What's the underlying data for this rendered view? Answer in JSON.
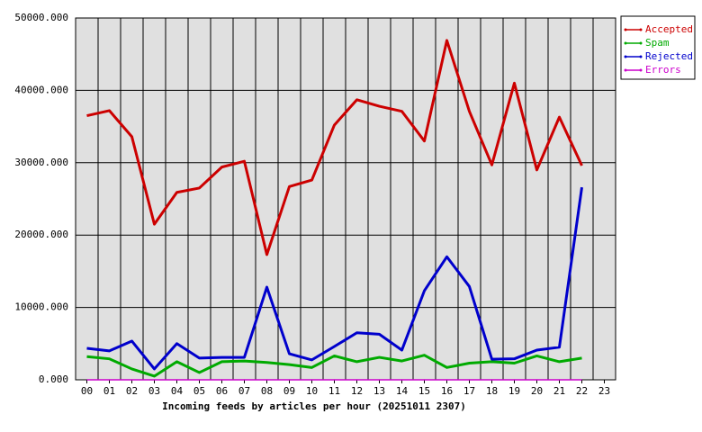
{
  "chart_data": {
    "type": "line",
    "xlabel": "Incoming feeds by articles per hour (20251011 2307)",
    "categories": [
      "00",
      "01",
      "02",
      "03",
      "04",
      "05",
      "06",
      "07",
      "08",
      "09",
      "10",
      "11",
      "12",
      "13",
      "14",
      "15",
      "16",
      "17",
      "18",
      "19",
      "20",
      "21",
      "22",
      "23"
    ],
    "series": [
      {
        "name": "Accepted",
        "color": "#cc0000",
        "values": [
          36500,
          37200,
          33600,
          21500,
          25900,
          26500,
          29400,
          30200,
          17300,
          26700,
          27600,
          35200,
          38700,
          37800,
          37100,
          33000,
          46900,
          37100,
          29700,
          41000,
          29000,
          36300,
          29600,
          null
        ]
      },
      {
        "name": "Spam",
        "color": "#00aa00",
        "values": [
          3200,
          2900,
          1500,
          500,
          2500,
          1000,
          2500,
          2600,
          2400,
          2100,
          1700,
          3300,
          2500,
          3100,
          2600,
          3400,
          1700,
          2300,
          2500,
          2300,
          3300,
          2500,
          3000,
          null
        ]
      },
      {
        "name": "Rejected",
        "color": "#0000cc",
        "values": [
          4350,
          4000,
          5350,
          1500,
          5000,
          3000,
          3100,
          3100,
          12800,
          3600,
          2750,
          4600,
          6500,
          6300,
          4100,
          12300,
          17000,
          12900,
          2850,
          2900,
          4100,
          4500,
          26600,
          null
        ]
      },
      {
        "name": "Errors",
        "color": "#cc00cc",
        "values": [
          0,
          0,
          0,
          0,
          0,
          0,
          0,
          0,
          0,
          0,
          0,
          0,
          0,
          0,
          0,
          0,
          0,
          0,
          0,
          0,
          0,
          0,
          0,
          null
        ]
      }
    ],
    "ylim": [
      0,
      50000
    ],
    "yticks": [
      {
        "value": 0,
        "label": "0.000"
      },
      {
        "value": 10000,
        "label": "10000.000"
      },
      {
        "value": 20000,
        "label": "20000.000"
      },
      {
        "value": 30000,
        "label": "30000.000"
      },
      {
        "value": 40000,
        "label": "40000.000"
      },
      {
        "value": 50000,
        "label": "50000.000"
      }
    ],
    "grid": true,
    "legend": "top-right"
  }
}
